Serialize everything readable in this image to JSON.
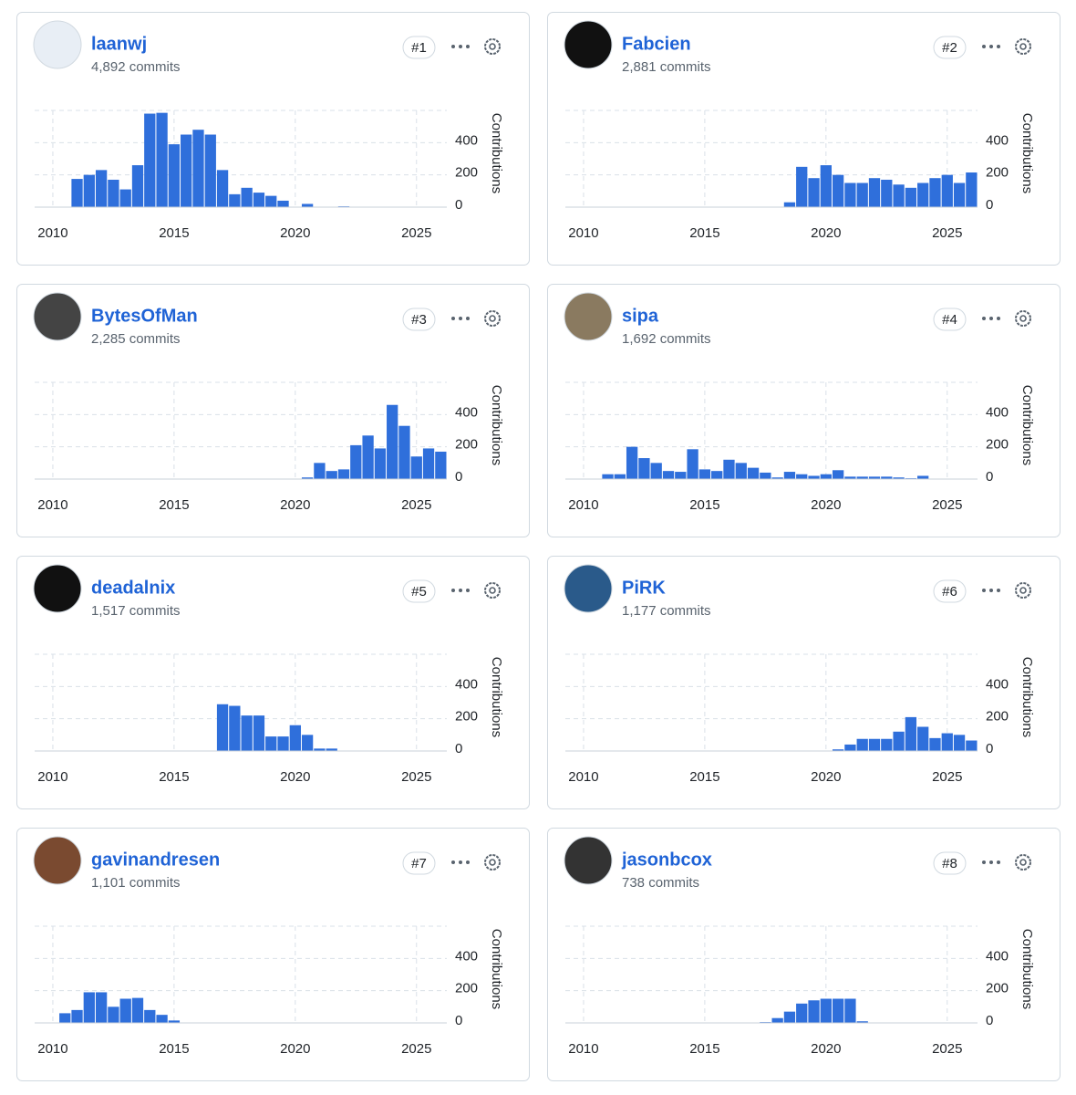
{
  "cards": [
    {
      "name": "laanwj",
      "commits": "4,892 commits",
      "rank": "#1"
    },
    {
      "name": "Fabcien",
      "commits": "2,881 commits",
      "rank": "#2"
    },
    {
      "name": "BytesOfMan",
      "commits": "2,285 commits",
      "rank": "#3"
    },
    {
      "name": "sipa",
      "commits": "1,692 commits",
      "rank": "#4"
    },
    {
      "name": "deadalnix",
      "commits": "1,517 commits",
      "rank": "#5"
    },
    {
      "name": "PiRK",
      "commits": "1,177 commits",
      "rank": "#6"
    },
    {
      "name": "gavinandresen",
      "commits": "1,101 commits",
      "rank": "#7"
    },
    {
      "name": "jasonbcox",
      "commits": "738 commits",
      "rank": "#8"
    }
  ],
  "chart_data": [
    {
      "type": "histogram",
      "y_label": "Contributions",
      "color": "#2f6fdb",
      "grid": true,
      "bins": [
        2010.75,
        2011.25,
        2011.75,
        2012.25,
        2012.75,
        2013.25,
        2013.75,
        2014.25,
        2014.75,
        2015.25,
        2015.75,
        2016.25,
        2016.75,
        2017.25,
        2017.75,
        2018.25,
        2018.75,
        2019.25,
        2019.75,
        2020.25,
        2020.75,
        2021.25,
        2021.75,
        2022.25
      ],
      "values": [
        175,
        200,
        230,
        170,
        110,
        260,
        580,
        585,
        390,
        450,
        480,
        450,
        230,
        80,
        120,
        90,
        70,
        40,
        0,
        20,
        0,
        0,
        5
      ],
      "xlim": [
        2009.25,
        2026.25
      ],
      "xticks": [
        2010,
        2015,
        2020,
        2025
      ],
      "ylim": [
        0,
        600
      ],
      "yticks": [
        0,
        200,
        400
      ]
    },
    {
      "type": "histogram",
      "y_label": "Contributions",
      "color": "#2f6fdb",
      "grid": true,
      "bins": [
        2018.25,
        2018.75,
        2019.25,
        2019.75,
        2020.25,
        2020.75,
        2021.25,
        2021.75,
        2022.25,
        2022.75,
        2023.25,
        2023.75,
        2024.25,
        2024.75,
        2025.25,
        2025.75,
        2026.25
      ],
      "values": [
        30,
        250,
        180,
        260,
        200,
        150,
        150,
        180,
        170,
        140,
        120,
        150,
        180,
        200,
        150,
        215
      ],
      "xlim": [
        2009.25,
        2026.25
      ],
      "xticks": [
        2010,
        2015,
        2020,
        2025
      ],
      "ylim": [
        0,
        600
      ],
      "yticks": [
        0,
        200,
        400
      ]
    },
    {
      "type": "histogram",
      "y_label": "Contributions",
      "color": "#2f6fdb",
      "grid": true,
      "bins": [
        2020.25,
        2020.75,
        2021.25,
        2021.75,
        2022.25,
        2022.75,
        2023.25,
        2023.75,
        2024.25,
        2024.75,
        2025.25,
        2025.75,
        2026.25
      ],
      "values": [
        10,
        100,
        50,
        60,
        210,
        270,
        190,
        460,
        330,
        140,
        190,
        170
      ],
      "xlim": [
        2009.25,
        2026.25
      ],
      "xticks": [
        2010,
        2015,
        2020,
        2025
      ],
      "ylim": [
        0,
        600
      ],
      "yticks": [
        0,
        200,
        400
      ]
    },
    {
      "type": "histogram",
      "y_label": "Contributions",
      "color": "#2f6fdb",
      "grid": true,
      "bins": [
        2010.75,
        2011.25,
        2011.75,
        2012.25,
        2012.75,
        2013.25,
        2013.75,
        2014.25,
        2014.75,
        2015.25,
        2015.75,
        2016.25,
        2016.75,
        2017.25,
        2017.75,
        2018.25,
        2018.75,
        2019.25,
        2019.75,
        2020.25,
        2020.75,
        2021.25,
        2021.75,
        2022.25,
        2022.75,
        2023.25,
        2023.75,
        2024.25
      ],
      "values": [
        30,
        30,
        200,
        130,
        100,
        50,
        45,
        185,
        60,
        50,
        120,
        100,
        70,
        40,
        10,
        45,
        30,
        20,
        30,
        55,
        15,
        15,
        15,
        15,
        10,
        5,
        20
      ],
      "xlim": [
        2009.25,
        2026.25
      ],
      "xticks": [
        2010,
        2015,
        2020,
        2025
      ],
      "ylim": [
        0,
        600
      ],
      "yticks": [
        0,
        200,
        400
      ]
    },
    {
      "type": "histogram",
      "y_label": "Contributions",
      "color": "#2f6fdb",
      "grid": true,
      "bins": [
        2016.75,
        2017.25,
        2017.75,
        2018.25,
        2018.75,
        2019.25,
        2019.75,
        2020.25,
        2020.75,
        2021.25,
        2021.75
      ],
      "values": [
        290,
        280,
        220,
        220,
        90,
        90,
        160,
        100,
        15,
        15
      ],
      "xlim": [
        2009.25,
        2026.25
      ],
      "xticks": [
        2010,
        2015,
        2020,
        2025
      ],
      "ylim": [
        0,
        600
      ],
      "yticks": [
        0,
        200,
        400
      ]
    },
    {
      "type": "histogram",
      "y_label": "Contributions",
      "color": "#2f6fdb",
      "grid": true,
      "bins": [
        2020.25,
        2020.75,
        2021.25,
        2021.75,
        2022.25,
        2022.75,
        2023.25,
        2023.75,
        2024.25,
        2024.75,
        2025.25,
        2025.75,
        2026.25
      ],
      "values": [
        10,
        40,
        75,
        75,
        75,
        120,
        210,
        150,
        80,
        110,
        100,
        65
      ],
      "xlim": [
        2009.25,
        2026.25
      ],
      "xticks": [
        2010,
        2015,
        2020,
        2025
      ],
      "ylim": [
        0,
        600
      ],
      "yticks": [
        0,
        200,
        400
      ]
    },
    {
      "type": "histogram",
      "y_label": "Contributions",
      "color": "#2f6fdb",
      "grid": true,
      "bins": [
        2010.25,
        2010.75,
        2011.25,
        2011.75,
        2012.25,
        2012.75,
        2013.25,
        2013.75,
        2014.25,
        2014.75,
        2015.25
      ],
      "values": [
        60,
        80,
        190,
        190,
        100,
        150,
        155,
        80,
        50,
        15
      ],
      "xlim": [
        2009.25,
        2026.25
      ],
      "xticks": [
        2010,
        2015,
        2020,
        2025
      ],
      "ylim": [
        0,
        600
      ],
      "yticks": [
        0,
        200,
        400
      ]
    },
    {
      "type": "histogram",
      "y_label": "Contributions",
      "color": "#2f6fdb",
      "grid": true,
      "bins": [
        2017.25,
        2017.75,
        2018.25,
        2018.75,
        2019.25,
        2019.75,
        2020.25,
        2020.75,
        2021.25,
        2021.75
      ],
      "values": [
        5,
        30,
        70,
        120,
        140,
        150,
        150,
        150,
        10
      ],
      "xlim": [
        2009.25,
        2026.25
      ],
      "xticks": [
        2010,
        2015,
        2020,
        2025
      ],
      "ylim": [
        0,
        600
      ],
      "yticks": [
        0,
        200,
        400
      ]
    }
  ]
}
